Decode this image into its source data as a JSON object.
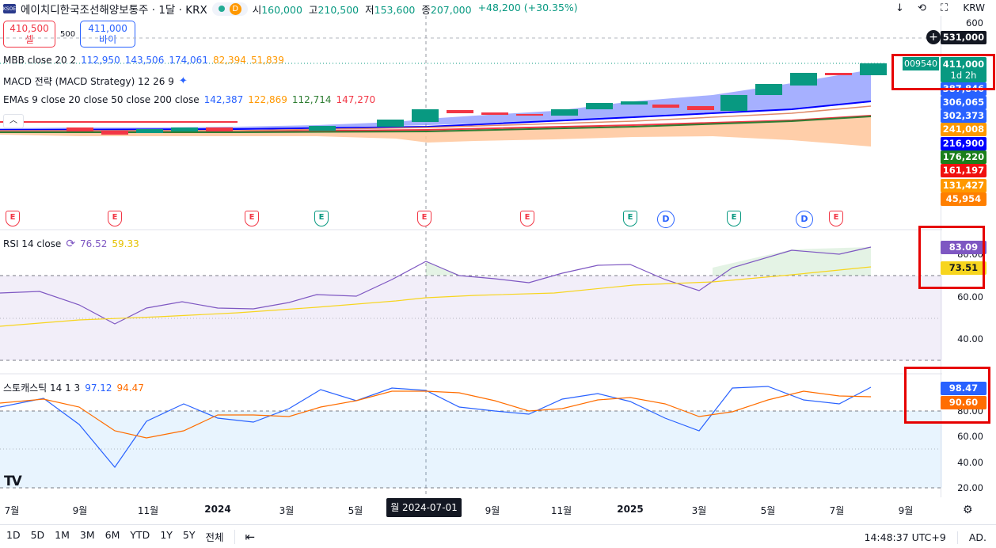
{
  "header": {
    "logo_text": "KSOE",
    "title": "에이치디한국조선해양보통주 · 1달 · KRX",
    "badge_d": "D",
    "open_label": "시",
    "open": "160,000",
    "high_label": "고",
    "high": "210,500",
    "low_label": "저",
    "low": "153,600",
    "close_label": "종",
    "close": "207,000",
    "change": "+48,200 (+30.35%)",
    "currency": "KRW"
  },
  "order": {
    "sell_price": "410,500",
    "sell_label": "셀",
    "spread": "500",
    "buy_price": "411,000",
    "buy_label": "바이"
  },
  "indicators": {
    "mbb": {
      "label": "MBB close 20 2",
      "v1": "112,950",
      "v2": "143,506",
      "v3": "174,061",
      "v4": "82,394",
      "v5": "51,839"
    },
    "macd": {
      "label": "MACD 전략 (MACD Strategy) 12 26 9"
    },
    "emas": {
      "label": "EMAs 9 close 20 close 50 close 200 close",
      "v1": "142,387",
      "v2": "122,869",
      "v3": "112,714",
      "v4": "147,270"
    },
    "rsi": {
      "label": "RSI 14 close",
      "v1": "76.52",
      "v2": "59.33"
    },
    "stoch": {
      "label": "스토캐스틱 14 1 3",
      "v1": "97.12",
      "v2": "94.47"
    }
  },
  "price_scale": {
    "top": "600",
    "crosshair": "531,000",
    "countdown_id": "009540",
    "last_price": "411,000",
    "last_countdown": "1d 2h",
    "tags": [
      {
        "value": "387,846",
        "color": "#2962ff"
      },
      {
        "value": "306,065",
        "color": "#2962ff"
      },
      {
        "value": "302,373",
        "color": "#2962ff"
      },
      {
        "value": "241,008",
        "color": "#ff9800"
      },
      {
        "value": "216,900",
        "color": "#0000ff"
      },
      {
        "value": "176,220",
        "color": "#1b7f1b"
      },
      {
        "value": "161,197",
        "color": "#f01010"
      },
      {
        "value": "131,427",
        "color": "#ff9800"
      },
      {
        "value": "45,954",
        "color": "#ff7f00"
      }
    ]
  },
  "rsi_scale": {
    "rsi": "83.09",
    "rsi_ma": "73.51",
    "ticks": [
      "80.00",
      "60.00",
      "40.00"
    ]
  },
  "stoch_scale": {
    "k": "98.47",
    "d": "90.60",
    "ticks": [
      "80.00",
      "60.00",
      "40.00",
      "20.00"
    ]
  },
  "events": [
    {
      "type": "E",
      "color": "red"
    },
    {
      "type": "E",
      "color": "red"
    },
    {
      "type": "E",
      "color": "red"
    },
    {
      "type": "E",
      "color": "green"
    },
    {
      "type": "E",
      "color": "red"
    },
    {
      "type": "E",
      "color": "red"
    },
    {
      "type": "E",
      "color": "green"
    },
    {
      "type": "D",
      "color": "blue"
    },
    {
      "type": "E",
      "color": "green"
    },
    {
      "type": "D",
      "color": "blue"
    },
    {
      "type": "E",
      "color": "red"
    }
  ],
  "x_axis": {
    "ticks": [
      "7월",
      "9월",
      "11월",
      "2024",
      "3월",
      "5월",
      "9월",
      "11월",
      "2025",
      "3월",
      "5월",
      "7월",
      "9월"
    ],
    "crosshair": "월 2024-07-01"
  },
  "bottom": {
    "ranges": [
      "1D",
      "5D",
      "1M",
      "3M",
      "6M",
      "YTD",
      "1Y",
      "5Y",
      "전체"
    ],
    "time": "14:48:37 UTC+9",
    "adj": "AD."
  },
  "colors": {
    "up": "#089981",
    "down": "#f23645",
    "rsi_line": "#7e57c2",
    "rsi_ma": "#f7d51e",
    "stoch_k": "#2962ff",
    "stoch_d": "#ff6d00"
  }
}
